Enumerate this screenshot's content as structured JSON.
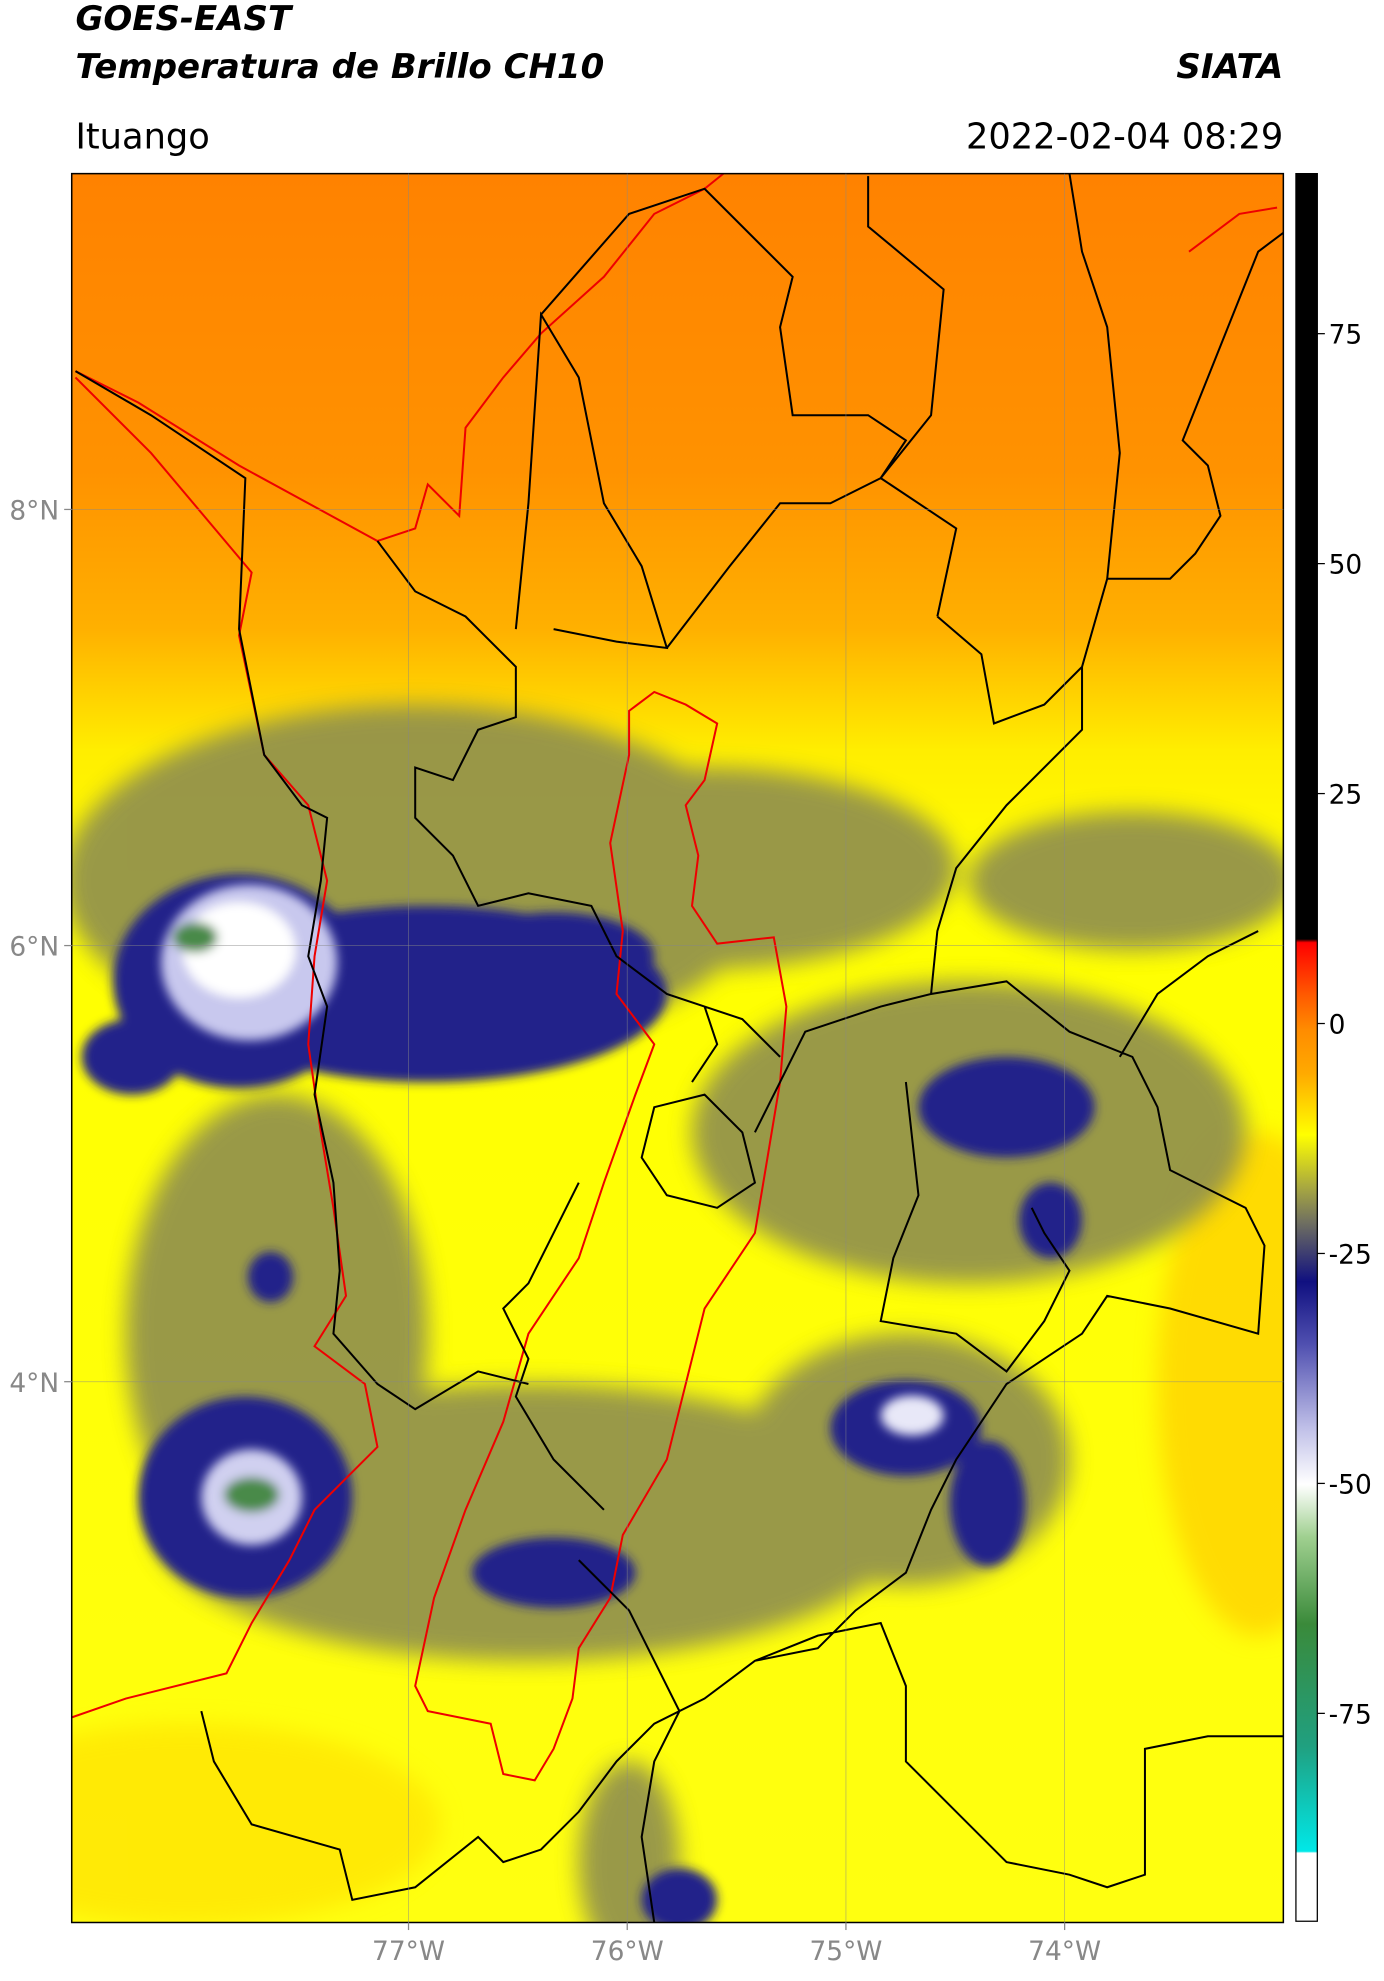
{
  "header": {
    "title": "GOES-EAST",
    "subtitle": "Temperatura de Brillo CH10",
    "source": "SIATA",
    "location": "Ituango",
    "datetime": "2022-02-04 08:29"
  },
  "map": {
    "xlim": [
      -78.54,
      -73.0
    ],
    "ylim": [
      1.52,
      9.54
    ],
    "xticks": [
      {
        "value": -77,
        "label": "77°W"
      },
      {
        "value": -76,
        "label": "76°W"
      },
      {
        "value": -75,
        "label": "75°W"
      },
      {
        "value": -74,
        "label": "74°W"
      }
    ],
    "yticks": [
      {
        "value": 8,
        "label": "8°N"
      },
      {
        "value": 6,
        "label": "6°N"
      },
      {
        "value": 4,
        "label": "4°N"
      }
    ],
    "grid": true
  },
  "colorbar": {
    "lim": [
      -97.6,
      92.4
    ],
    "ticks": [
      75,
      50,
      25,
      0,
      -25,
      -50,
      -75
    ]
  }
}
